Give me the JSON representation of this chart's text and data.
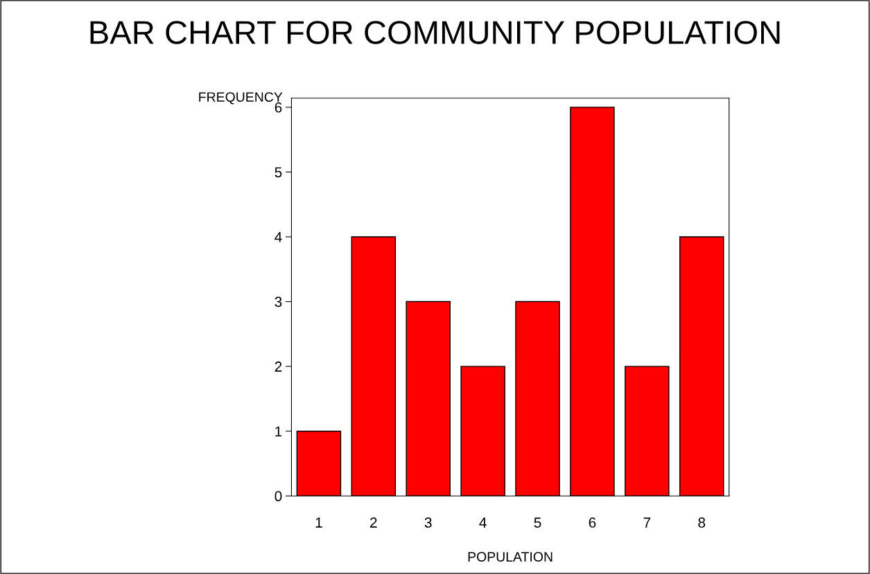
{
  "chart_data": {
    "type": "bar",
    "title": "BAR CHART FOR COMMUNITY POPULATION",
    "xlabel": "POPULATION",
    "ylabel": "FREQUENCY",
    "categories": [
      "1",
      "2",
      "3",
      "4",
      "5",
      "6",
      "7",
      "8"
    ],
    "values": [
      1,
      4,
      3,
      2,
      3,
      6,
      2,
      4
    ],
    "color": "#ff0000",
    "ylim": [
      0,
      6.14
    ],
    "yticks": [
      0,
      1,
      2,
      3,
      4,
      5,
      6
    ],
    "grid": false,
    "legend": false
  }
}
